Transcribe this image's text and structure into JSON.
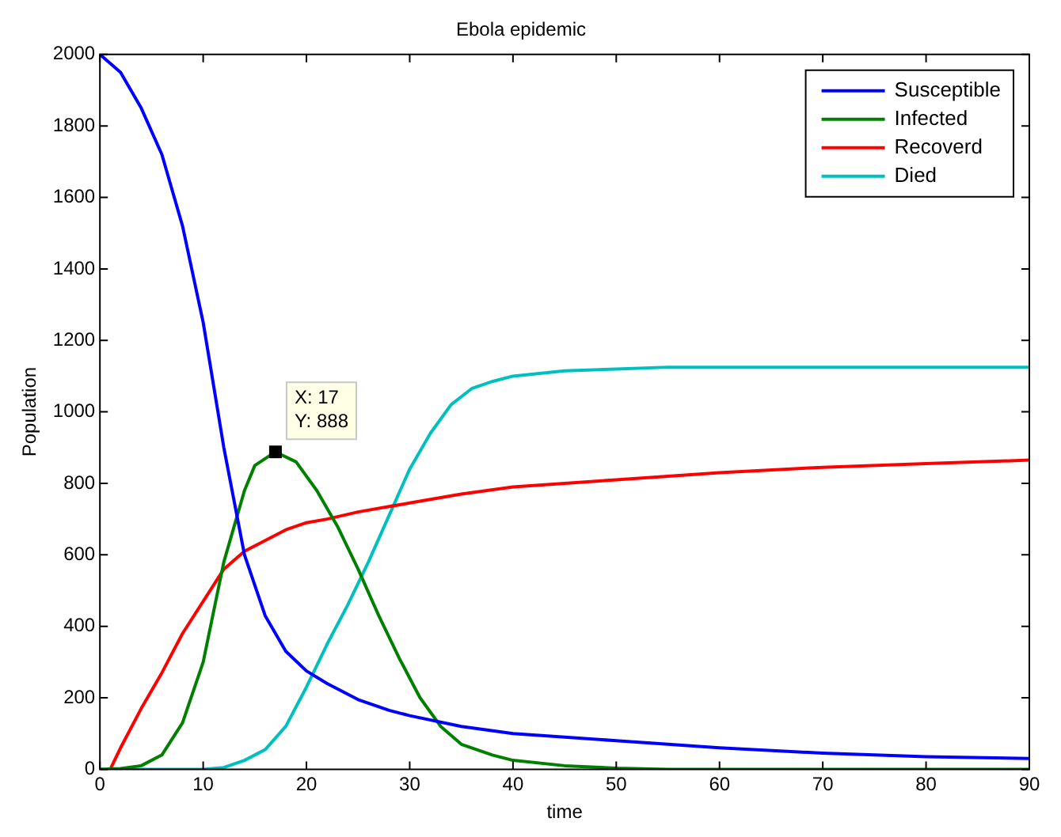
{
  "chart_data": {
    "type": "line",
    "title": "Ebola epidemic",
    "xlabel": "time",
    "ylabel": "Population",
    "xlim": [
      0,
      90
    ],
    "xticks": [
      0,
      10,
      20,
      30,
      40,
      50,
      60,
      70,
      80,
      90
    ],
    "ylim": [
      0,
      2000
    ],
    "yticks": [
      0,
      200,
      400,
      600,
      800,
      1000,
      1200,
      1400,
      1600,
      1800,
      2000
    ],
    "grid": false,
    "legend": "top right",
    "marker": "none",
    "line_style": "solid",
    "annotations": [
      {
        "text": "X: 17\nY: 888",
        "x": 17,
        "y": 888
      }
    ],
    "series": [
      {
        "name": "Susceptible",
        "color": "#0000ff",
        "x": [
          0,
          2,
          4,
          6,
          8,
          10,
          12,
          14,
          16,
          18,
          20,
          22,
          25,
          28,
          30,
          35,
          40,
          50,
          60,
          70,
          80,
          90
        ],
        "values": [
          2000,
          1950,
          1850,
          1720,
          1520,
          1250,
          900,
          600,
          430,
          330,
          275,
          240,
          195,
          165,
          150,
          120,
          100,
          80,
          60,
          45,
          35,
          30
        ]
      },
      {
        "name": "Infected",
        "color": "#008000",
        "x": [
          0,
          2,
          4,
          6,
          8,
          10,
          12,
          14,
          15,
          17,
          19,
          21,
          23,
          25,
          27,
          29,
          31,
          33,
          35,
          38,
          40,
          45,
          50,
          55,
          90
        ],
        "values": [
          0,
          2,
          10,
          40,
          130,
          300,
          580,
          780,
          850,
          888,
          860,
          780,
          680,
          560,
          430,
          310,
          200,
          120,
          70,
          40,
          25,
          10,
          3,
          0,
          0
        ]
      },
      {
        "name": "Recoverd",
        "color": "#ff0000",
        "x": [
          1,
          2,
          4,
          6,
          8,
          10,
          12,
          14,
          16,
          18,
          20,
          22,
          25,
          28,
          30,
          35,
          40,
          50,
          60,
          70,
          80,
          90
        ],
        "values": [
          0,
          60,
          170,
          270,
          380,
          470,
          560,
          610,
          640,
          670,
          690,
          700,
          720,
          735,
          745,
          770,
          790,
          810,
          830,
          845,
          855,
          865
        ]
      },
      {
        "name": "Died",
        "color": "#00bfbf",
        "x": [
          0,
          10,
          12,
          14,
          16,
          18,
          20,
          22,
          24,
          26,
          28,
          30,
          32,
          34,
          36,
          38,
          40,
          45,
          50,
          55,
          90
        ],
        "values": [
          0,
          0,
          5,
          25,
          55,
          120,
          230,
          350,
          460,
          580,
          710,
          840,
          940,
          1020,
          1065,
          1085,
          1100,
          1115,
          1120,
          1125,
          1125
        ]
      }
    ]
  }
}
